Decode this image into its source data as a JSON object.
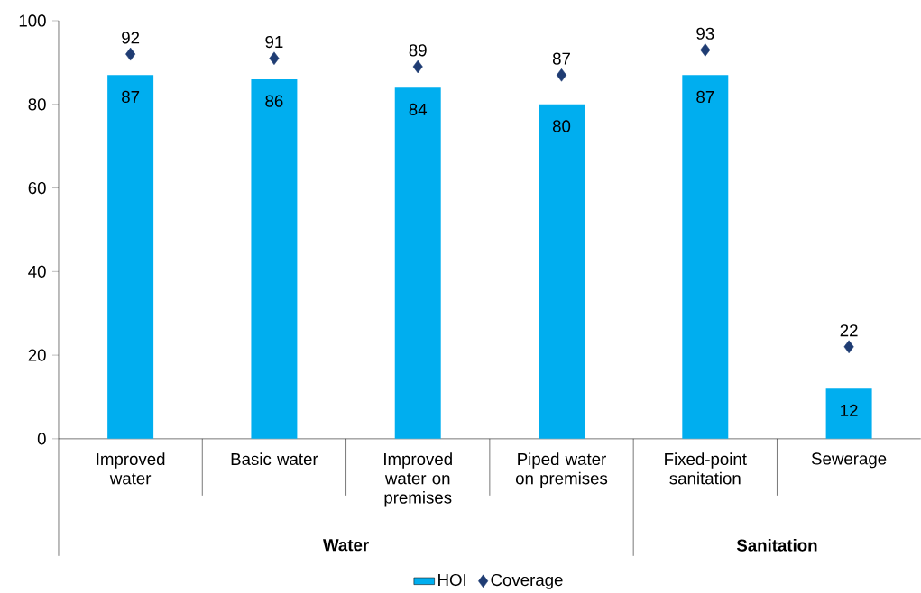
{
  "chart_data": {
    "type": "bar",
    "categories": [
      "Improved water",
      "Basic water",
      "Improved water on premises",
      "Piped water on premises",
      "Fixed-point sanitation",
      "Sewerage"
    ],
    "series": [
      {
        "name": "HOI",
        "color": "#00aeef",
        "values": [
          87,
          86,
          84,
          80,
          87,
          12
        ]
      },
      {
        "name": "Coverage",
        "type": "scatter",
        "color": "#1f3c73",
        "marker": "diamond",
        "values": [
          92,
          91,
          89,
          87,
          93,
          22
        ]
      }
    ],
    "ylim": [
      0,
      100
    ],
    "yticks": [
      0,
      20,
      40,
      60,
      80,
      100
    ],
    "data_labels": true,
    "grid": false,
    "legend": "bottom",
    "annotations": [
      "Water",
      "Sanitation"
    ]
  }
}
